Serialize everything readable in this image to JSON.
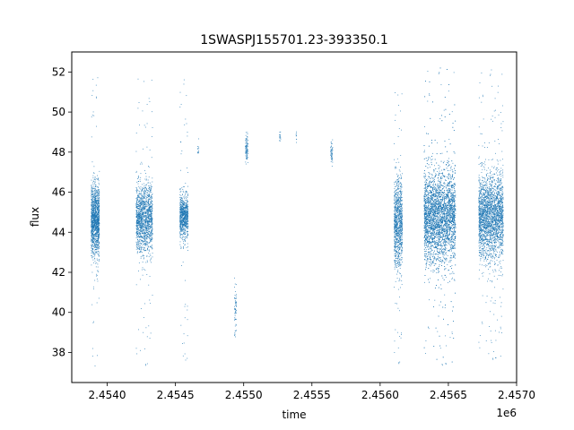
{
  "chart_data": {
    "type": "scatter",
    "title": "1SWASPJ155701.23-393350.1",
    "xlabel": "time",
    "ylabel": "flux",
    "x_offset_label": "1e6",
    "xlim": [
      2453740,
      2457000
    ],
    "ylim": [
      36.5,
      53.0
    ],
    "x_ticks": [
      2454000,
      2454500,
      2455000,
      2455500,
      2456000,
      2456500,
      2457000
    ],
    "x_tick_labels": [
      "2.4540",
      "2.4545",
      "2.4550",
      "2.4555",
      "2.4560",
      "2.4565",
      "2.4570"
    ],
    "y_ticks": [
      38,
      40,
      42,
      44,
      46,
      48,
      50,
      52
    ],
    "y_tick_labels": [
      "38",
      "40",
      "42",
      "44",
      "46",
      "48",
      "50",
      "52"
    ],
    "grid": false,
    "legend": "none",
    "marker_color": "#1f77b4",
    "series": [
      {
        "clusters": [
          {
            "x_start": 2453880,
            "x_end": 2453940,
            "y_center": 44.6,
            "y_spread": 1.6,
            "outlier_min": 37.3,
            "outlier_max": 52.1,
            "density": 1300
          },
          {
            "x_start": 2454210,
            "x_end": 2454330,
            "y_center": 44.7,
            "y_spread": 1.5,
            "outlier_min": 37.2,
            "outlier_max": 52.0,
            "density": 1500
          },
          {
            "x_start": 2454530,
            "x_end": 2454590,
            "y_center": 44.8,
            "y_spread": 1.0,
            "outlier_min": 37.4,
            "outlier_max": 51.8,
            "density": 800
          },
          {
            "x_start": 2454660,
            "x_end": 2454670,
            "y_center": 48.2,
            "y_spread": 0.4,
            "outlier_min": 47.6,
            "outlier_max": 48.7,
            "density": 12
          },
          {
            "x_start": 2454930,
            "x_end": 2454945,
            "y_center": 40.3,
            "y_spread": 1.2,
            "outlier_min": 38.8,
            "outlier_max": 42.8,
            "density": 60
          },
          {
            "x_start": 2455010,
            "x_end": 2455030,
            "y_center": 48.2,
            "y_spread": 0.6,
            "outlier_min": 46.4,
            "outlier_max": 49.0,
            "density": 90
          },
          {
            "x_start": 2455260,
            "x_end": 2455270,
            "y_center": 48.8,
            "y_spread": 0.3,
            "outlier_min": 48.3,
            "outlier_max": 49.4,
            "density": 15
          },
          {
            "x_start": 2455380,
            "x_end": 2455385,
            "y_center": 48.8,
            "y_spread": 0.3,
            "outlier_min": 48.5,
            "outlier_max": 49.3,
            "density": 8
          },
          {
            "x_start": 2455635,
            "x_end": 2455650,
            "y_center": 48.0,
            "y_spread": 0.5,
            "outlier_min": 47.2,
            "outlier_max": 48.8,
            "density": 50
          },
          {
            "x_start": 2456100,
            "x_end": 2456160,
            "y_center": 44.5,
            "y_spread": 2.0,
            "outlier_min": 37.3,
            "outlier_max": 51.3,
            "density": 1000
          },
          {
            "x_start": 2456320,
            "x_end": 2456550,
            "y_center": 44.8,
            "y_spread": 2.1,
            "outlier_min": 37.2,
            "outlier_max": 52.4,
            "density": 4200
          },
          {
            "x_start": 2456720,
            "x_end": 2456900,
            "y_center": 44.8,
            "y_spread": 1.9,
            "outlier_min": 37.5,
            "outlier_max": 52.3,
            "density": 2500
          }
        ]
      }
    ]
  }
}
